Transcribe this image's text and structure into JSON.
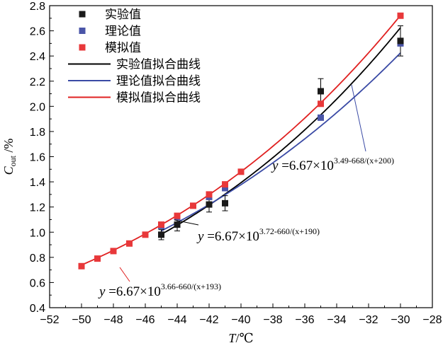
{
  "chart_data": {
    "type": "scatter",
    "title": "",
    "xlabel": "T/℃",
    "ylabel": "Cout /%",
    "xlim": [
      -52,
      -28
    ],
    "ylim": [
      0.4,
      2.8
    ],
    "xticks": [
      "−52",
      "−50",
      "−48",
      "−46",
      "−44",
      "−42",
      "−40",
      "−38",
      "−36",
      "−34",
      "−32",
      "−30",
      "−28"
    ],
    "yticks": [
      "0.4",
      "0.6",
      "0.8",
      "1.0",
      "1.2",
      "1.4",
      "1.6",
      "1.8",
      "2.0",
      "2.2",
      "2.4",
      "2.6",
      "2.8"
    ],
    "grid": false,
    "legend_position": "top-left",
    "series": [
      {
        "name": "实验值",
        "kind": "points",
        "color": "#1a1a1a",
        "x": [
          -45,
          -44,
          -42,
          -41,
          -35,
          -30
        ],
        "y": [
          0.98,
          1.06,
          1.22,
          1.23,
          2.12,
          2.52
        ],
        "err": [
          0.04,
          0.05,
          0.06,
          0.06,
          0.1,
          0.12
        ]
      },
      {
        "name": "理论值",
        "kind": "points",
        "color": "#4a55a8",
        "x": [
          -45,
          -44,
          -42,
          -41,
          -35,
          -30
        ],
        "y": [
          1.05,
          1.12,
          1.28,
          1.35,
          1.91,
          2.5
        ]
      },
      {
        "name": "模拟值",
        "kind": "points",
        "color": "#e8383a",
        "x": [
          -50,
          -49,
          -48,
          -47,
          -46,
          -45,
          -44,
          -43,
          -42,
          -41,
          -40,
          -35,
          -30
        ],
        "y": [
          0.73,
          0.79,
          0.85,
          0.91,
          0.98,
          1.06,
          1.13,
          1.21,
          1.3,
          1.38,
          1.48,
          2.02,
          2.72
        ]
      },
      {
        "name": "实验值拟合曲线",
        "kind": "line",
        "color": "#000000",
        "equation": {
          "a": 3.72,
          "b": 660,
          "c": 190
        },
        "x_range": [
          -45,
          -30
        ]
      },
      {
        "name": "理论值拟合曲线",
        "kind": "line",
        "color": "#3a4aa5",
        "equation": {
          "a": 3.49,
          "b": 668,
          "c": 200
        },
        "x_range": [
          -45,
          -30
        ]
      },
      {
        "name": "模拟值拟合曲线",
        "kind": "line",
        "color": "#e02020",
        "equation": {
          "a": 3.66,
          "b": 660,
          "c": 193
        },
        "x_range": [
          -50,
          -30
        ]
      }
    ],
    "annotations": [
      {
        "label": "y =6.67×10",
        "exponent": "3.49-668/(x+200)",
        "series": "理论值拟合曲线"
      },
      {
        "label": "y =6.67×10",
        "exponent": "3.72-660/(x+190)",
        "series": "实验值拟合曲线"
      },
      {
        "label": "y =6.67×10",
        "exponent": "3.66-660/(x+193)",
        "series": "模拟值拟合曲线"
      }
    ]
  }
}
